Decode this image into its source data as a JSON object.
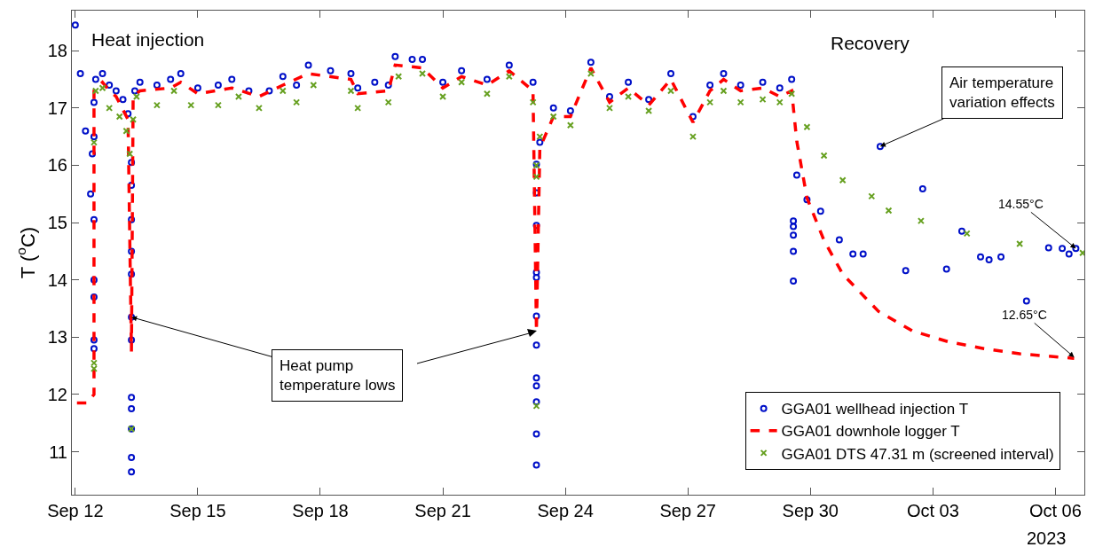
{
  "chart_data": {
    "type": "scatter",
    "ylabel": "T ($^{o}$C)",
    "xlim": [
      "2023-09-11T22:00",
      "2023-10-06T17:00"
    ],
    "xticks": [
      {
        "value": "2023-09-12",
        "label": "Sep 12"
      },
      {
        "value": "2023-09-15",
        "label": "Sep 15"
      },
      {
        "value": "2023-09-18",
        "label": "Sep 18"
      },
      {
        "value": "2023-09-21",
        "label": "Sep 21"
      },
      {
        "value": "2023-09-24",
        "label": "Sep 24"
      },
      {
        "value": "2023-09-27",
        "label": "Sep 27"
      },
      {
        "value": "2023-09-30",
        "label": "Sep 30"
      },
      {
        "value": "2023-10-03",
        "label": "Oct 03"
      },
      {
        "value": "2023-10-06",
        "label": "Oct 06"
      }
    ],
    "ylim": [
      10.25,
      18.7
    ],
    "yticks": [
      11,
      12,
      13,
      14,
      15,
      16,
      17,
      18
    ],
    "grid": false,
    "legend": "bottom right",
    "series": [
      {
        "name": "GGA01 wellhead injection T",
        "marker": "circle",
        "color": "#0010c8",
        "x": [
          "2023-09-12T00:00",
          "2023-09-12T03:00",
          "2023-09-12T06:00",
          "2023-09-12T09:00",
          "2023-09-12T10:00",
          "2023-09-12T11:00",
          "2023-09-12T11:00",
          "2023-09-12T11:00",
          "2023-09-12T11:00",
          "2023-09-12T11:00",
          "2023-09-12T11:00",
          "2023-09-12T11:00",
          "2023-09-12T12:00",
          "2023-09-12T16:00",
          "2023-09-12T20:00",
          "2023-09-13T00:00",
          "2023-09-13T04:00",
          "2023-09-13T07:00",
          "2023-09-13T09:00",
          "2023-09-13T09:00",
          "2023-09-13T09:00",
          "2023-09-13T09:00",
          "2023-09-13T09:00",
          "2023-09-13T09:00",
          "2023-09-13T09:00",
          "2023-09-13T09:00",
          "2023-09-13T09:00",
          "2023-09-13T09:00",
          "2023-09-13T09:00",
          "2023-09-13T09:00",
          "2023-09-13T11:00",
          "2023-09-13T14:00",
          "2023-09-14T00:00",
          "2023-09-14T08:00",
          "2023-09-14T14:00",
          "2023-09-15T00:00",
          "2023-09-15T12:00",
          "2023-09-15T20:00",
          "2023-09-16T06:00",
          "2023-09-16T18:00",
          "2023-09-17T02:00",
          "2023-09-17T10:00",
          "2023-09-17T17:00",
          "2023-09-18T06:00",
          "2023-09-18T18:00",
          "2023-09-18T22:00",
          "2023-09-19T08:00",
          "2023-09-19T16:00",
          "2023-09-19T20:00",
          "2023-09-20T06:00",
          "2023-09-20T12:00",
          "2023-09-21T00:00",
          "2023-09-21T11:00",
          "2023-09-22T02:00",
          "2023-09-22T15:00",
          "2023-09-23T05:00",
          "2023-09-23T07:00",
          "2023-09-23T07:00",
          "2023-09-23T07:00",
          "2023-09-23T07:00",
          "2023-09-23T07:00",
          "2023-09-23T07:00",
          "2023-09-23T07:00",
          "2023-09-23T07:00",
          "2023-09-23T07:00",
          "2023-09-23T07:00",
          "2023-09-23T07:00",
          "2023-09-23T07:00",
          "2023-09-23T09:00",
          "2023-09-23T17:00",
          "2023-09-24T03:00",
          "2023-09-24T15:00",
          "2023-09-25T02:00",
          "2023-09-25T13:00",
          "2023-09-26T01:00",
          "2023-09-26T14:00",
          "2023-09-27T03:00",
          "2023-09-27T13:00",
          "2023-09-27T21:00",
          "2023-09-28T07:00",
          "2023-09-28T20:00",
          "2023-09-29T06:00",
          "2023-09-29T13:00",
          "2023-09-29T14:00",
          "2023-09-29T14:00",
          "2023-09-29T14:00",
          "2023-09-29T14:00",
          "2023-09-29T14:00",
          "2023-09-29T16:00",
          "2023-09-29T22:00",
          "2023-09-30T06:00",
          "2023-09-30T17:00",
          "2023-10-01T01:00",
          "2023-10-01T07:00",
          "2023-10-01T17:00",
          "2023-10-02T08:00",
          "2023-10-02T18:00",
          "2023-10-03T08:00",
          "2023-10-03T17:00",
          "2023-10-04T04:00",
          "2023-10-04T09:00",
          "2023-10-04T16:00",
          "2023-10-05T07:00",
          "2023-10-05T20:00",
          "2023-10-06T04:00",
          "2023-10-06T08:00",
          "2023-10-06T12:00"
        ],
        "values": [
          18.45,
          17.6,
          16.6,
          15.5,
          16.2,
          17.1,
          16.5,
          15.05,
          14.0,
          13.7,
          12.95,
          12.8,
          17.5,
          17.6,
          17.4,
          17.3,
          17.15,
          16.9,
          16.05,
          15.65,
          15.05,
          14.5,
          14.1,
          13.35,
          12.95,
          11.95,
          11.75,
          11.4,
          10.9,
          10.65,
          17.3,
          17.45,
          17.4,
          17.5,
          17.6,
          17.35,
          17.4,
          17.5,
          17.3,
          17.3,
          17.55,
          17.4,
          17.75,
          17.65,
          17.6,
          17.35,
          17.45,
          17.4,
          17.9,
          17.85,
          17.85,
          17.45,
          17.65,
          17.5,
          17.75,
          17.45,
          16.02,
          15.52,
          14.95,
          14.13,
          14.04,
          13.37,
          12.86,
          12.29,
          12.15,
          11.87,
          11.31,
          10.77,
          16.4,
          17.0,
          16.95,
          17.8,
          17.2,
          17.45,
          17.15,
          17.6,
          16.85,
          17.4,
          17.6,
          17.4,
          17.45,
          17.35,
          17.5,
          13.98,
          14.5,
          14.78,
          14.93,
          15.03,
          15.83,
          15.4,
          15.2,
          14.7,
          14.45,
          14.45,
          16.33,
          14.16,
          15.59,
          14.19,
          14.85,
          14.4,
          14.35,
          14.4,
          13.63,
          14.56,
          14.55,
          14.45,
          14.55
        ]
      },
      {
        "name": "GGA01 downhole logger T",
        "type": "line",
        "line_style": "dashed",
        "color": "#ff0000",
        "x": [
          "2023-09-12T01:00",
          "2023-09-12T07:00",
          "2023-09-12T11:00",
          "2023-09-12T11:00",
          "2023-09-12T16:00",
          "2023-09-12T20:00",
          "2023-09-13T00:00",
          "2023-09-13T07:00",
          "2023-09-13T09:00",
          "2023-09-13T10:00",
          "2023-09-13T14:00",
          "2023-09-14T08:00",
          "2023-09-14T14:00",
          "2023-09-15T00:00",
          "2023-09-15T20:00",
          "2023-09-16T12:00",
          "2023-09-17T02:00",
          "2023-09-17T17:00",
          "2023-09-18T18:00",
          "2023-09-18T22:00",
          "2023-09-19T16:00",
          "2023-09-19T20:00",
          "2023-09-20T12:00",
          "2023-09-21T00:00",
          "2023-09-21T11:00",
          "2023-09-22T02:00",
          "2023-09-22T15:00",
          "2023-09-23T05:00",
          "2023-09-23T07:00",
          "2023-09-23T09:00",
          "2023-09-23T17:00",
          "2023-09-24T03:00",
          "2023-09-24T15:00",
          "2023-09-25T02:00",
          "2023-09-25T13:00",
          "2023-09-26T01:00",
          "2023-09-26T14:00",
          "2023-09-27T03:00",
          "2023-09-27T13:00",
          "2023-09-27T21:00",
          "2023-09-28T07:00",
          "2023-09-28T20:00",
          "2023-09-29T06:00",
          "2023-09-29T13:00",
          "2023-09-29T16:00",
          "2023-09-29T22:00",
          "2023-09-30T08:00",
          "2023-09-30T19:00",
          "2023-10-01T16:00",
          "2023-10-02T12:00",
          "2023-10-03T09:00",
          "2023-10-04T06:00",
          "2023-10-05T03:00",
          "2023-10-06T11:00"
        ],
        "values": [
          11.85,
          11.85,
          12.0,
          17.3,
          17.45,
          17.3,
          17.2,
          16.8,
          12.75,
          17.2,
          17.3,
          17.35,
          17.45,
          17.25,
          17.35,
          17.2,
          17.4,
          17.6,
          17.5,
          17.25,
          17.3,
          17.75,
          17.7,
          17.35,
          17.55,
          17.4,
          17.65,
          17.3,
          13.1,
          16.3,
          16.85,
          16.85,
          17.7,
          17.1,
          17.35,
          17.05,
          17.5,
          16.75,
          17.3,
          17.5,
          17.3,
          17.35,
          17.2,
          17.3,
          16.42,
          15.43,
          14.69,
          14.1,
          13.45,
          13.11,
          12.92,
          12.8,
          12.71,
          12.63
        ]
      },
      {
        "name": "GGA01 DTS 47.31 m (screened interval)",
        "marker": "cross",
        "color": "#66a020",
        "x": [
          "2023-09-12T11:00",
          "2023-09-12T11:00",
          "2023-09-12T11:00",
          "2023-09-12T12:00",
          "2023-09-12T16:00",
          "2023-09-12T20:00",
          "2023-09-13T02:00",
          "2023-09-13T06:00",
          "2023-09-13T08:00",
          "2023-09-13T09:00",
          "2023-09-13T10:00",
          "2023-09-13T12:00",
          "2023-09-14T00:00",
          "2023-09-14T10:00",
          "2023-09-14T20:00",
          "2023-09-15T12:00",
          "2023-09-16T00:00",
          "2023-09-16T12:00",
          "2023-09-17T02:00",
          "2023-09-17T10:00",
          "2023-09-17T20:00",
          "2023-09-18T18:00",
          "2023-09-18T22:00",
          "2023-09-19T16:00",
          "2023-09-19T22:00",
          "2023-09-20T12:00",
          "2023-09-21T00:00",
          "2023-09-21T11:00",
          "2023-09-22T02:00",
          "2023-09-22T15:00",
          "2023-09-23T05:00",
          "2023-09-23T07:00",
          "2023-09-23T07:00",
          "2023-09-23T07:00",
          "2023-09-23T09:00",
          "2023-09-23T17:00",
          "2023-09-24T03:00",
          "2023-09-24T15:00",
          "2023-09-25T02:00",
          "2023-09-25T13:00",
          "2023-09-26T01:00",
          "2023-09-26T14:00",
          "2023-09-27T03:00",
          "2023-09-27T13:00",
          "2023-09-27T21:00",
          "2023-09-28T07:00",
          "2023-09-28T20:00",
          "2023-09-29T06:00",
          "2023-09-29T13:00",
          "2023-09-29T22:00",
          "2023-09-30T08:00",
          "2023-09-30T19:00",
          "2023-10-01T12:00",
          "2023-10-01T22:00",
          "2023-10-02T17:00",
          "2023-10-03T20:00",
          "2023-10-05T03:00",
          "2023-10-06T16:00"
        ],
        "values": [
          12.45,
          12.55,
          16.4,
          17.3,
          17.35,
          17.0,
          16.85,
          16.6,
          16.2,
          11.4,
          16.8,
          17.2,
          17.05,
          17.3,
          17.05,
          17.05,
          17.2,
          17.0,
          17.3,
          17.1,
          17.4,
          17.3,
          17.0,
          17.1,
          17.55,
          17.6,
          17.2,
          17.45,
          17.25,
          17.55,
          17.1,
          16.0,
          15.8,
          11.8,
          16.5,
          16.85,
          16.7,
          17.6,
          17.0,
          17.2,
          16.95,
          17.3,
          16.5,
          17.1,
          17.3,
          17.1,
          17.15,
          17.1,
          17.25,
          16.67,
          16.17,
          15.74,
          15.46,
          15.21,
          15.03,
          14.81,
          14.63,
          14.47
        ]
      }
    ],
    "annotations": [
      "Heat injection",
      "Recovery",
      {
        "text": "Heat pump\ntemperature lows",
        "x": "2023-09-13T09:00",
        "y": 13.35
      },
      {
        "text": "Air temperature\nvariation effects",
        "x": "2023-10-01T17:00",
        "y": 16.33
      },
      {
        "text": "14.55°C",
        "x": "2023-10-06T12:00",
        "y": 14.55
      },
      {
        "text": "12.65°C",
        "x": "2023-10-06T11:00",
        "y": 12.65
      },
      "2023"
    ]
  }
}
